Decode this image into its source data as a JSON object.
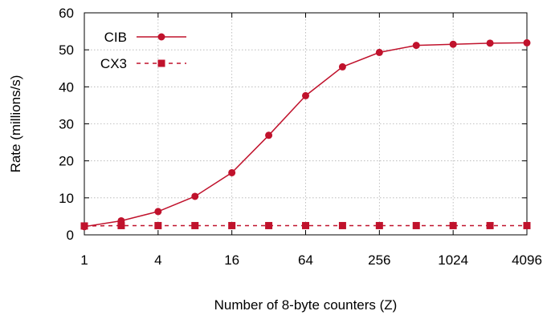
{
  "chart_data": {
    "type": "line",
    "xlabel": "Number of 8-byte counters (Z)",
    "ylabel": "Rate (millions/s)",
    "xscale": "log2",
    "xlim": [
      1,
      4096
    ],
    "ylim": [
      0,
      60
    ],
    "xticks": [
      1,
      4,
      16,
      64,
      256,
      1024,
      4096
    ],
    "xtick_labels": [
      "1",
      "4",
      "16",
      "64",
      "256",
      "1024",
      "4096"
    ],
    "yticks": [
      0,
      10,
      20,
      30,
      40,
      50,
      60
    ],
    "ytick_labels": [
      "0",
      "10",
      "20",
      "30",
      "40",
      "50",
      "60"
    ],
    "grid": true,
    "legend_position": "top-left",
    "x": [
      1,
      2,
      4,
      8,
      16,
      32,
      64,
      128,
      256,
      512,
      1024,
      2048,
      4096
    ],
    "series": [
      {
        "name": "CIB",
        "color": "#c0122c",
        "line_style": "solid",
        "marker": "circle",
        "values": [
          2.2,
          3.8,
          6.3,
          10.4,
          16.8,
          26.9,
          37.6,
          45.4,
          49.3,
          51.2,
          51.5,
          51.8,
          51.9
        ]
      },
      {
        "name": "CX3",
        "color": "#c0122c",
        "line_style": "dashed",
        "marker": "square",
        "values": [
          2.4,
          2.5,
          2.5,
          2.5,
          2.5,
          2.5,
          2.5,
          2.5,
          2.5,
          2.5,
          2.5,
          2.5,
          2.5
        ]
      }
    ]
  }
}
